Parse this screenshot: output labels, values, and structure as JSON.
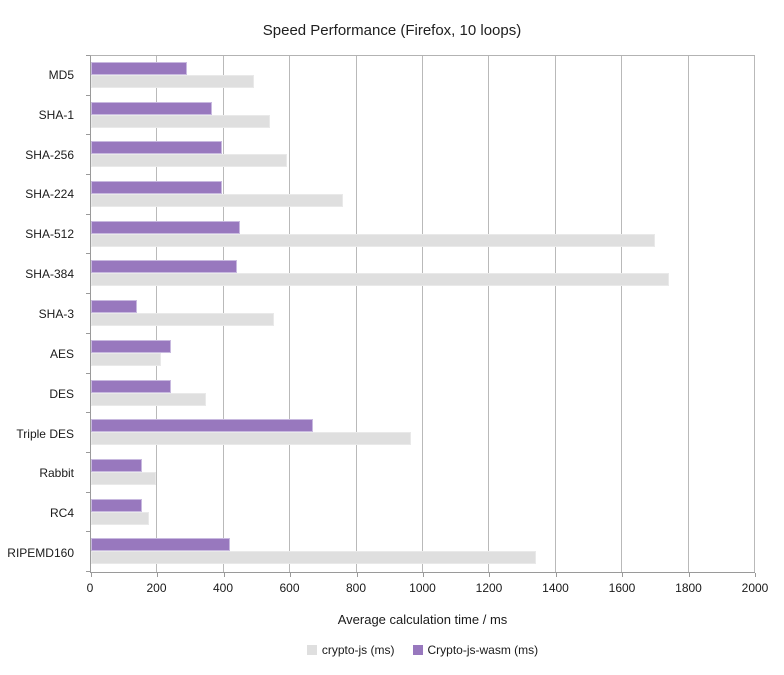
{
  "chart_data": {
    "type": "bar",
    "orientation": "horizontal",
    "title": "Speed Performance (Firefox, 10 loops)",
    "xlabel": "Average calculation time / ms",
    "ylabel": "",
    "xlim": [
      0,
      2000
    ],
    "xticks": [
      0,
      200,
      400,
      600,
      800,
      1000,
      1200,
      1400,
      1600,
      1800,
      2000
    ],
    "grid": "vertical",
    "legend_position": "bottom",
    "categories": [
      "MD5",
      "SHA-1",
      "SHA-256",
      "SHA-224",
      "SHA-512",
      "SHA-384",
      "SHA-3",
      "AES",
      "DES",
      "Triple DES",
      "Rabbit",
      "RC4",
      "RIPEMD160"
    ],
    "series": [
      {
        "name": "crypto-js (ms)",
        "color": "#dfdfdf",
        "values": [
          490,
          540,
          590,
          760,
          1700,
          1740,
          550,
          210,
          345,
          965,
          195,
          175,
          1340
        ]
      },
      {
        "name": "Crypto-js-wasm (ms)",
        "color": "#9878be",
        "values": [
          290,
          365,
          395,
          395,
          450,
          440,
          140,
          240,
          240,
          670,
          155,
          155,
          420
        ]
      }
    ]
  }
}
